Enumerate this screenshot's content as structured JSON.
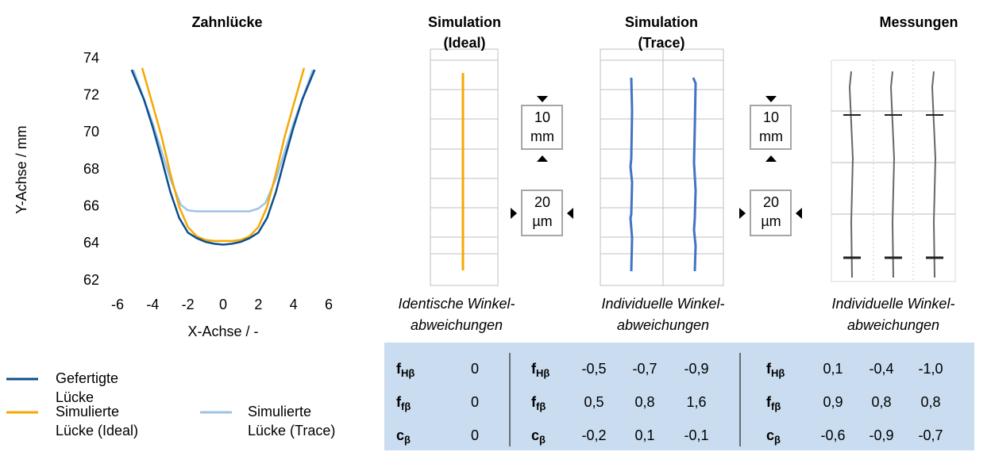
{
  "chart_data": {
    "type": "line",
    "title": "Zahnlücke",
    "xlabel": "X-Achse / -",
    "ylabel": "Y-Achse / mm",
    "xlim": [
      -6,
      6
    ],
    "ylim": [
      62,
      74
    ],
    "xticks": [
      -6,
      -4,
      -2,
      0,
      2,
      4,
      6
    ],
    "yticks": [
      62,
      64,
      66,
      68,
      70,
      72,
      74
    ],
    "grid": false,
    "series": [
      {
        "name": "Gefertigte Lücke",
        "color": "#0b4f8f",
        "x": [
          -5.2,
          -4.5,
          -4,
          -3.5,
          -3,
          -2.5,
          -2,
          -1.5,
          -1,
          -0.5,
          0,
          0.5,
          1,
          1.5,
          2,
          2.5,
          3,
          3.5,
          4,
          4.5,
          5.2
        ],
        "values": [
          73.4,
          71.8,
          70.3,
          68.6,
          66.8,
          65.4,
          64.6,
          64.3,
          64.1,
          64.0,
          63.95,
          64.0,
          64.1,
          64.3,
          64.6,
          65.4,
          66.8,
          68.6,
          70.3,
          71.8,
          73.4
        ]
      },
      {
        "name": "Simulierte Lücke (Ideal)",
        "color": "#f5a800",
        "x": [
          -4.6,
          -4,
          -3.5,
          -3,
          -2.5,
          -2,
          -1.5,
          -1,
          -0.5,
          0,
          0.5,
          1,
          1.5,
          2,
          2.5,
          3,
          3.5,
          4,
          4.6
        ],
        "values": [
          73.5,
          71.5,
          69.8,
          67.8,
          66.0,
          64.9,
          64.4,
          64.2,
          64.15,
          64.15,
          64.15,
          64.2,
          64.4,
          64.9,
          66.0,
          67.8,
          69.8,
          71.5,
          73.5
        ]
      },
      {
        "name": "Simulierte Lücke (Trace)",
        "color": "#9dc3e6",
        "x": [
          -5.1,
          -4,
          -3,
          -2.4,
          -2,
          -1.5,
          0,
          1.5,
          2,
          2.4,
          3,
          4,
          5.1
        ],
        "values": [
          73.4,
          70.5,
          67.5,
          66.1,
          65.8,
          65.75,
          65.75,
          65.75,
          65.9,
          66.2,
          67.5,
          70.5,
          73.4
        ]
      }
    ]
  },
  "panels": [
    {
      "title": [
        "Simulation",
        "(Ideal)"
      ],
      "caption": [
        "Identische Winkel-",
        "abweichungen"
      ]
    },
    {
      "title": [
        "Simulation",
        "(Trace)"
      ],
      "caption": [
        "Individuelle Winkel-",
        "abweichungen"
      ]
    },
    {
      "title": [
        "Messungen"
      ],
      "caption": [
        "Individuelle Winkel-",
        "abweichungen"
      ]
    }
  ],
  "scales": [
    {
      "value": "10",
      "unit": "mm"
    },
    {
      "value": "20",
      "unit": "µm"
    }
  ],
  "table": {
    "rows": [
      {
        "symbol": {
          "main": "f",
          "sub": "Hβ"
        },
        "groups": [
          [
            "0"
          ],
          [
            "-0,5",
            "-0,7",
            "-0,9"
          ],
          [
            "0,1",
            "-0,4",
            "-1,0"
          ]
        ]
      },
      {
        "symbol": {
          "main": "f",
          "sub": "fβ"
        },
        "groups": [
          [
            "0"
          ],
          [
            "0,5",
            "0,8",
            "1,6"
          ],
          [
            "0,9",
            "0,8",
            "0,8"
          ]
        ]
      },
      {
        "symbol": {
          "main": "c",
          "sub": "β"
        },
        "groups": [
          [
            "0"
          ],
          [
            "-0,2",
            "0,1",
            "-0,1"
          ],
          [
            "-0,6",
            "-0,9",
            "-0,7"
          ]
        ]
      }
    ]
  }
}
